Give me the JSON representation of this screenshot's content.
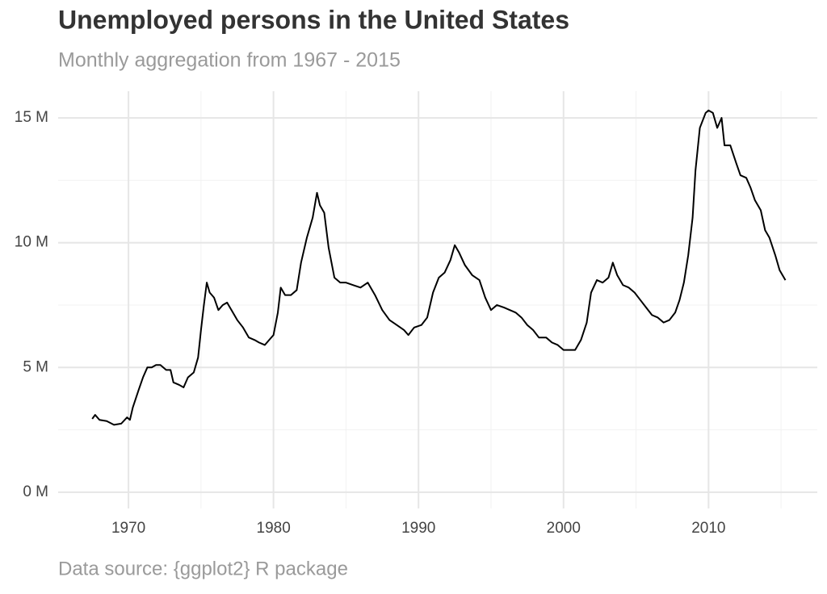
{
  "chart_data": {
    "type": "line",
    "title": "Unemployed persons in the United States",
    "subtitle": "Monthly aggregation from 1967 - 2015",
    "caption": "Data source: {ggplot2} R package",
    "x": [
      1967.5,
      1967.7,
      1968.0,
      1968.5,
      1969.0,
      1969.5,
      1969.9,
      1970.1,
      1970.3,
      1970.7,
      1971.0,
      1971.3,
      1971.6,
      1971.9,
      1972.2,
      1972.6,
      1972.9,
      1973.1,
      1973.5,
      1973.8,
      1974.1,
      1974.5,
      1974.8,
      1975.0,
      1975.2,
      1975.4,
      1975.6,
      1975.9,
      1976.2,
      1976.5,
      1976.8,
      1977.1,
      1977.5,
      1977.9,
      1978.3,
      1978.7,
      1979.0,
      1979.4,
      1979.7,
      1980.0,
      1980.3,
      1980.5,
      1980.8,
      1981.2,
      1981.6,
      1981.9,
      1982.3,
      1982.7,
      1983.0,
      1983.2,
      1983.5,
      1983.8,
      1984.2,
      1984.6,
      1985.0,
      1985.5,
      1986.0,
      1986.5,
      1987.0,
      1987.5,
      1988.0,
      1988.5,
      1989.0,
      1989.3,
      1989.7,
      1990.2,
      1990.6,
      1991.0,
      1991.4,
      1991.8,
      1992.2,
      1992.5,
      1992.8,
      1993.2,
      1993.7,
      1994.2,
      1994.6,
      1995.0,
      1995.4,
      1995.9,
      1996.3,
      1996.7,
      1997.1,
      1997.5,
      1997.9,
      1998.3,
      1998.8,
      1999.2,
      1999.6,
      2000.0,
      2000.4,
      2000.8,
      2001.2,
      2001.6,
      2001.9,
      2002.3,
      2002.7,
      2003.1,
      2003.4,
      2003.7,
      2004.1,
      2004.5,
      2004.9,
      2005.3,
      2005.7,
      2006.1,
      2006.5,
      2006.9,
      2007.3,
      2007.7,
      2008.0,
      2008.3,
      2008.6,
      2008.9,
      2009.1,
      2009.4,
      2009.8,
      2010.0,
      2010.3,
      2010.6,
      2010.9,
      2011.1,
      2011.5,
      2011.9,
      2012.2,
      2012.6,
      2012.9,
      2013.2,
      2013.6,
      2013.9,
      2014.2,
      2014.6,
      2014.9,
      2015.2,
      2015.3
    ],
    "values": [
      2.94,
      3.1,
      2.9,
      2.85,
      2.7,
      2.75,
      3.0,
      2.9,
      3.4,
      4.1,
      4.6,
      5.0,
      5.0,
      5.1,
      5.1,
      4.9,
      4.9,
      4.4,
      4.3,
      4.2,
      4.6,
      4.8,
      5.4,
      6.5,
      7.5,
      8.4,
      8.0,
      7.8,
      7.3,
      7.5,
      7.6,
      7.3,
      6.9,
      6.6,
      6.2,
      6.1,
      6.0,
      5.9,
      6.1,
      6.3,
      7.2,
      8.2,
      7.9,
      7.9,
      8.1,
      9.2,
      10.2,
      11.0,
      12.0,
      11.5,
      11.2,
      9.8,
      8.6,
      8.4,
      8.4,
      8.3,
      8.2,
      8.4,
      7.9,
      7.3,
      6.9,
      6.7,
      6.5,
      6.3,
      6.6,
      6.7,
      7.0,
      8.0,
      8.6,
      8.8,
      9.3,
      9.9,
      9.6,
      9.1,
      8.7,
      8.5,
      7.8,
      7.3,
      7.5,
      7.4,
      7.3,
      7.2,
      7.0,
      6.7,
      6.5,
      6.2,
      6.2,
      6.0,
      5.9,
      5.7,
      5.7,
      5.7,
      6.1,
      6.8,
      8.0,
      8.5,
      8.4,
      8.6,
      9.2,
      8.7,
      8.3,
      8.2,
      8.0,
      7.7,
      7.4,
      7.1,
      7.0,
      6.8,
      6.9,
      7.2,
      7.7,
      8.4,
      9.5,
      11.0,
      12.9,
      14.6,
      15.2,
      15.3,
      15.2,
      14.6,
      15.0,
      13.9,
      13.9,
      13.2,
      12.7,
      12.6,
      12.2,
      11.7,
      11.3,
      10.5,
      10.2,
      9.5,
      8.9,
      8.6,
      8.5
    ],
    "color": "#000000",
    "xlim": [
      1965.15,
      2017.5
    ],
    "xticks": [
      1970,
      1980,
      1990,
      2000,
      2010
    ],
    "minor_xticks": [
      1975,
      1985,
      1995,
      2005,
      2015
    ],
    "ylim": [
      -0.65,
      16.07
    ],
    "yticks": [
      {
        "value": 0,
        "label": "0 M"
      },
      {
        "value": 5,
        "label": "5 M"
      },
      {
        "value": 10,
        "label": "10 M"
      },
      {
        "value": 15,
        "label": "15 M"
      }
    ],
    "minor_yticks": [
      2.5,
      7.5,
      12.5
    ],
    "grid": true
  }
}
